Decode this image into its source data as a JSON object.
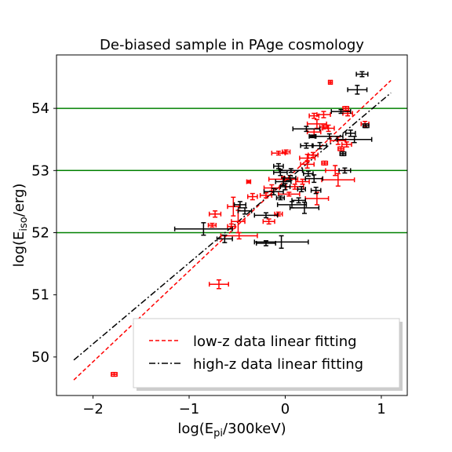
{
  "chart_data": {
    "type": "scatter",
    "title": "De-biased sample in PAge cosmology",
    "xlabel": {
      "prefix": "log(E",
      "sub": "pi",
      "suffix": "/300keV)"
    },
    "ylabel": {
      "prefix": "log(E",
      "sub": "iso",
      "suffix": "/erg)"
    },
    "xlim": [
      -2.38,
      1.27
    ],
    "ylim": [
      49.38,
      54.86
    ],
    "xticks": [
      -2,
      -1,
      0,
      1
    ],
    "xtick_labels": [
      "−2",
      "−1",
      "0",
      "1"
    ],
    "yticks": [
      50,
      51,
      52,
      53,
      54
    ],
    "ytick_labels": [
      "50",
      "51",
      "52",
      "53",
      "54"
    ],
    "hlines": {
      "values": [
        52,
        53,
        54
      ],
      "color": "#008000"
    },
    "grid": false,
    "legend": {
      "position": "lower-right",
      "entries": [
        {
          "label": "low-z data linear fitting",
          "color": "#ff0000",
          "style": "dashed"
        },
        {
          "label": "high-z data linear fitting",
          "color": "#000000",
          "style": "dashdot"
        }
      ]
    },
    "fit_lines": [
      {
        "color": "#ff0000",
        "style": "dashed",
        "x": [
          -2.2,
          1.1
        ],
        "y": [
          49.63,
          54.45
        ]
      },
      {
        "color": "#000000",
        "style": "dashdot",
        "x": [
          -2.2,
          1.1
        ],
        "y": [
          49.95,
          54.25
        ]
      }
    ],
    "series": [
      {
        "color": "#ff0000",
        "points": [
          [
            -1.78,
            49.72,
            0.03,
            0.03
          ],
          [
            -0.69,
            51.17,
            0.1,
            0.07
          ],
          [
            -0.73,
            52.3,
            0.06,
            0.05
          ],
          [
            -0.76,
            52.12,
            0.04,
            0.03
          ],
          [
            -0.54,
            52.42,
            0.06,
            0.15
          ],
          [
            -0.49,
            52.18,
            0.07,
            0.18
          ],
          [
            -0.48,
            51.95,
            0.19,
            0.05
          ],
          [
            -0.56,
            52.1,
            0.04,
            0.04
          ],
          [
            -0.38,
            52.82,
            0.02,
            0.02
          ],
          [
            -0.34,
            52.58,
            0.05,
            0.05
          ],
          [
            -0.2,
            52.6,
            0.06,
            0.04
          ],
          [
            -0.17,
            52.18,
            0.06,
            0.04
          ],
          [
            -0.07,
            52.3,
            0.04,
            0.03
          ],
          [
            -0.14,
            52.72,
            0.08,
            0.05
          ],
          [
            -0.07,
            53.28,
            0.07,
            0.03
          ],
          [
            0.01,
            53.3,
            0.04,
            0.03
          ],
          [
            -0.02,
            52.86,
            0.15,
            0.04
          ],
          [
            0.1,
            52.74,
            0.09,
            0.04
          ],
          [
            0.04,
            52.62,
            0.11,
            0.03
          ],
          [
            0.18,
            52.82,
            0.07,
            0.04
          ],
          [
            0.23,
            53.2,
            0.08,
            0.06
          ],
          [
            0.29,
            53.25,
            0.05,
            0.04
          ],
          [
            0.33,
            52.55,
            0.12,
            0.1
          ],
          [
            0.3,
            53.62,
            0.07,
            0.05
          ],
          [
            0.33,
            53.75,
            0.1,
            0.07
          ],
          [
            0.3,
            53.88,
            0.05,
            0.04
          ],
          [
            0.4,
            53.9,
            0.07,
            0.05
          ],
          [
            0.4,
            53.7,
            0.04,
            0.03
          ],
          [
            0.45,
            53.68,
            0.06,
            0.05
          ],
          [
            0.41,
            53.12,
            0.03,
            0.03
          ],
          [
            0.55,
            52.85,
            0.17,
            0.1
          ],
          [
            0.52,
            53.0,
            0.1,
            0.08
          ],
          [
            0.55,
            53.48,
            0.08,
            0.06
          ],
          [
            0.63,
            54.0,
            0.03,
            0.03
          ],
          [
            0.64,
            53.42,
            0.05,
            0.04
          ],
          [
            0.47,
            54.42,
            0.02,
            0.03
          ],
          [
            0.58,
            53.35,
            0.03,
            0.03
          ],
          [
            0.83,
            53.75,
            0.04,
            0.04
          ],
          [
            0.65,
            53.92,
            0.05,
            0.04
          ],
          [
            0.23,
            53.1,
            0.07,
            0.06
          ]
        ]
      },
      {
        "color": "#000000",
        "points": [
          [
            -0.85,
            52.06,
            0.3,
            0.1
          ],
          [
            -0.63,
            51.9,
            0.08,
            0.06
          ],
          [
            -0.2,
            51.83,
            0.1,
            0.04
          ],
          [
            -0.04,
            51.85,
            0.28,
            0.1
          ],
          [
            -0.42,
            52.35,
            0.07,
            0.05
          ],
          [
            -0.47,
            52.45,
            0.06,
            0.05
          ],
          [
            -0.2,
            52.28,
            0.12,
            0.04
          ],
          [
            -0.12,
            52.66,
            0.1,
            0.05
          ],
          [
            -0.05,
            52.56,
            0.04,
            0.03
          ],
          [
            0.0,
            52.74,
            0.05,
            0.05
          ],
          [
            0.07,
            52.45,
            0.15,
            0.05
          ],
          [
            0.2,
            52.4,
            0.15,
            0.09
          ],
          [
            -0.02,
            52.82,
            0.08,
            0.06
          ],
          [
            0.05,
            52.88,
            0.06,
            0.04
          ],
          [
            -0.05,
            52.97,
            0.07,
            0.05
          ],
          [
            0.06,
            53.0,
            0.12,
            0.03
          ],
          [
            -0.07,
            53.07,
            0.05,
            0.04
          ],
          [
            0.24,
            52.95,
            0.05,
            0.04
          ],
          [
            0.3,
            52.87,
            0.09,
            0.06
          ],
          [
            0.22,
            53.4,
            0.06,
            0.04
          ],
          [
            0.28,
            53.55,
            0.03,
            0.02
          ],
          [
            0.22,
            53.67,
            0.14,
            0.04
          ],
          [
            0.36,
            53.4,
            0.07,
            0.05
          ],
          [
            0.46,
            53.55,
            0.14,
            0.04
          ],
          [
            0.6,
            53.27,
            0.03,
            0.03
          ],
          [
            0.62,
            53.0,
            0.06,
            0.04
          ],
          [
            0.58,
            53.95,
            0.1,
            0.03
          ],
          [
            0.68,
            53.6,
            0.05,
            0.05
          ],
          [
            0.75,
            54.3,
            0.1,
            0.07
          ],
          [
            0.8,
            54.55,
            0.06,
            0.04
          ],
          [
            0.84,
            53.72,
            0.03,
            0.03
          ],
          [
            0.72,
            53.5,
            0.18,
            0.05
          ],
          [
            0.32,
            52.68,
            0.05,
            0.05
          ],
          [
            0.17,
            52.7,
            0.04,
            0.04
          ],
          [
            0.14,
            52.52,
            0.07,
            0.04
          ]
        ]
      }
    ]
  }
}
